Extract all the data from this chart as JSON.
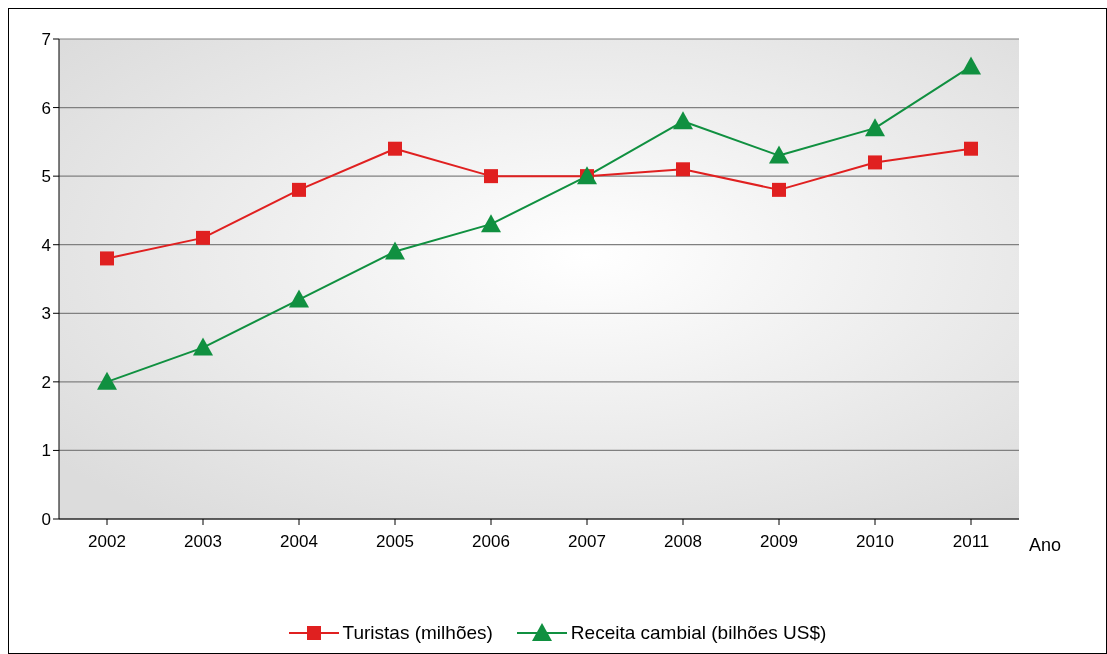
{
  "chart_data": {
    "type": "line",
    "xlabel": "Ano",
    "categories": [
      "2002",
      "2003",
      "2004",
      "2005",
      "2006",
      "2007",
      "2008",
      "2009",
      "2010",
      "2011"
    ],
    "series": [
      {
        "name": "Turistas (milhões)",
        "color": "#e02020",
        "marker": "square",
        "values": [
          3.8,
          4.1,
          4.8,
          5.4,
          5.0,
          5.0,
          5.1,
          4.8,
          5.2,
          5.4
        ]
      },
      {
        "name": "Receita cambial (bilhões US$)",
        "color": "#109040",
        "marker": "triangle",
        "values": [
          2.0,
          2.5,
          3.2,
          3.9,
          4.3,
          5.0,
          5.8,
          5.3,
          5.7,
          6.6
        ]
      }
    ],
    "ylim": [
      0,
      7
    ],
    "yticks": [
      0,
      1,
      2,
      3,
      4,
      5,
      6,
      7
    ],
    "grid": "y",
    "legend": "bottom",
    "line_style": "solid"
  }
}
